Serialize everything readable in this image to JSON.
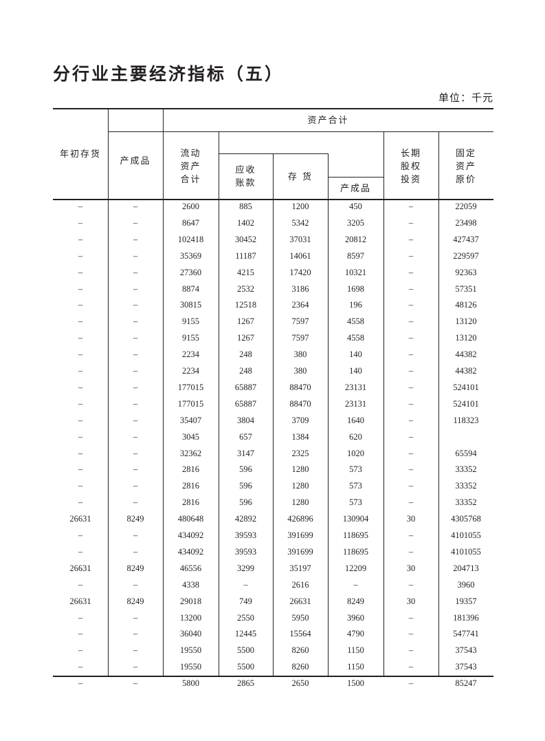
{
  "title": "分行业主要经济指标（五）",
  "unit": "单位：千元",
  "headers": {
    "opening_inventory": "年初存货",
    "finished_goods_1": "产成品",
    "total_assets": "资产合计",
    "current_assets": "流动\n资产\n合计",
    "receivables": "应收\n账款",
    "inventory": "存  货",
    "finished_goods_2": "产成品",
    "long_term_equity": "长期\n股权\n投资",
    "fixed_assets": "固定\n资产\n原价"
  },
  "rows": [
    [
      "–",
      "–",
      "2600",
      "885",
      "1200",
      "450",
      "–",
      "22059"
    ],
    [
      "–",
      "–",
      "8647",
      "1402",
      "5342",
      "3205",
      "–",
      "23498"
    ],
    [
      "–",
      "–",
      "102418",
      "30452",
      "37031",
      "20812",
      "–",
      "427437"
    ],
    [
      "–",
      "–",
      "35369",
      "11187",
      "14061",
      "8597",
      "–",
      "229597"
    ],
    [
      "–",
      "–",
      "27360",
      "4215",
      "17420",
      "10321",
      "–",
      "92363"
    ],
    [
      "–",
      "–",
      "8874",
      "2532",
      "3186",
      "1698",
      "–",
      "57351"
    ],
    [
      "–",
      "–",
      "30815",
      "12518",
      "2364",
      "196",
      "–",
      "48126"
    ],
    [
      "–",
      "–",
      "9155",
      "1267",
      "7597",
      "4558",
      "–",
      "13120"
    ],
    [
      "–",
      "–",
      "9155",
      "1267",
      "7597",
      "4558",
      "–",
      "13120"
    ],
    [
      "–",
      "–",
      "2234",
      "248",
      "380",
      "140",
      "–",
      "44382"
    ],
    [
      "–",
      "–",
      "2234",
      "248",
      "380",
      "140",
      "–",
      "44382"
    ],
    [
      "–",
      "–",
      "177015",
      "65887",
      "88470",
      "23131",
      "–",
      "524101"
    ],
    [
      "–",
      "–",
      "177015",
      "65887",
      "88470",
      "23131",
      "–",
      "524101"
    ],
    [
      "–",
      "–",
      "35407",
      "3804",
      "3709",
      "1640",
      "–",
      "118323"
    ],
    [
      "–",
      "–",
      "3045",
      "657",
      "1384",
      "620",
      "–",
      ""
    ],
    [
      "–",
      "–",
      "32362",
      "3147",
      "2325",
      "1020",
      "–",
      "65594"
    ],
    [
      "–",
      "–",
      "2816",
      "596",
      "1280",
      "573",
      "–",
      "33352"
    ],
    [
      "–",
      "–",
      "2816",
      "596",
      "1280",
      "573",
      "–",
      "33352"
    ],
    [
      "–",
      "–",
      "2816",
      "596",
      "1280",
      "573",
      "–",
      "33352"
    ],
    [
      "26631",
      "8249",
      "480648",
      "42892",
      "426896",
      "130904",
      "30",
      "4305768"
    ],
    [
      "–",
      "–",
      "434092",
      "39593",
      "391699",
      "118695",
      "–",
      "4101055"
    ],
    [
      "–",
      "–",
      "434092",
      "39593",
      "391699",
      "118695",
      "–",
      "4101055"
    ],
    [
      "26631",
      "8249",
      "46556",
      "3299",
      "35197",
      "12209",
      "30",
      "204713"
    ],
    [
      "–",
      "–",
      "4338",
      "–",
      "2616",
      "–",
      "–",
      "3960"
    ],
    [
      "26631",
      "8249",
      "29018",
      "749",
      "26631",
      "8249",
      "30",
      "19357"
    ],
    [
      "–",
      "–",
      "13200",
      "2550",
      "5950",
      "3960",
      "–",
      "181396"
    ],
    [
      "–",
      "–",
      "36040",
      "12445",
      "15564",
      "4790",
      "–",
      "547741"
    ],
    [
      "–",
      "–",
      "19550",
      "5500",
      "8260",
      "1150",
      "–",
      "37543"
    ],
    [
      "–",
      "–",
      "19550",
      "5500",
      "8260",
      "1150",
      "–",
      "37543"
    ],
    [
      "–",
      "–",
      "5800",
      "2865",
      "2650",
      "1500",
      "–",
      "85247"
    ]
  ]
}
